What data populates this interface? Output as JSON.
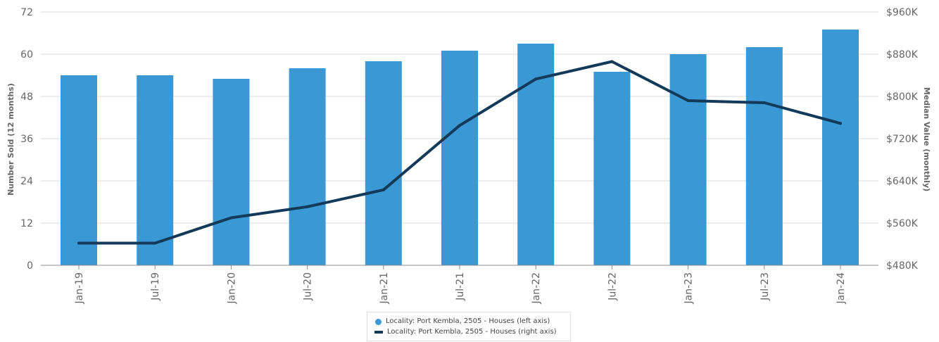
{
  "chart_data": {
    "type": "bar",
    "categories": [
      "Jan-19",
      "Jul-19",
      "Jan-20",
      "Jul-20",
      "Jan-21",
      "Jul-21",
      "Jan-22",
      "Jul-22",
      "Jan-23",
      "Jul-23",
      "Jan-24"
    ],
    "series": [
      {
        "name": "Locality: Port Kembla, 2505 - Houses (left axis)",
        "type": "bar",
        "axis": "left",
        "color": "#3a98d4",
        "values": [
          54,
          54,
          53,
          56,
          58,
          61,
          63,
          55,
          60,
          62,
          67
        ]
      },
      {
        "name": "Locality: Port Kembla, 2505 - Houses (right axis)",
        "type": "line",
        "axis": "right",
        "color": "#143a5a",
        "values": [
          522000,
          522000,
          570000,
          591000,
          623000,
          745000,
          833000,
          866000,
          792000,
          788000,
          749000
        ]
      }
    ],
    "ylabel": "Number Sold (12 months)",
    "ylabel_right": "Median Value (monthly)",
    "ylim": [
      0,
      72
    ],
    "ylim_right": [
      480000,
      960000
    ],
    "yticks": [
      "0",
      "12",
      "24",
      "36",
      "48",
      "60",
      "72"
    ],
    "yticks_right": [
      "$480K",
      "$560K",
      "$640K",
      "$720K",
      "$800K",
      "$880K",
      "$960K"
    ],
    "grid": true,
    "legend_position": "bottom-center"
  }
}
